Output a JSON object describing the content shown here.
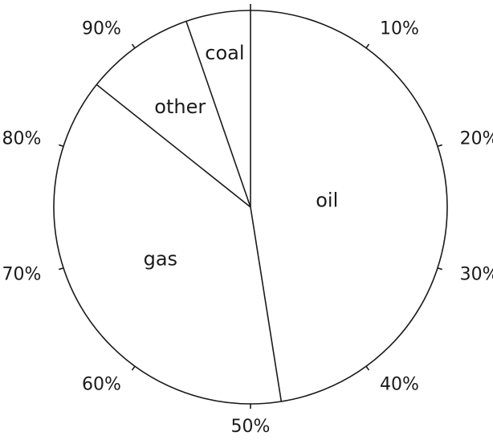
{
  "chart_data": {
    "type": "pie",
    "title": "",
    "start_angle": "top (12 o'clock)",
    "direction": "clockwise",
    "grid": false,
    "legend": "none (slices labelled directly)",
    "slices": [
      {
        "label": "oil",
        "value": 47.5
      },
      {
        "label": "gas",
        "value": 38.2
      },
      {
        "label": "other",
        "value": 9.0
      },
      {
        "label": "coal",
        "value": 5.3
      }
    ],
    "scale_ticks": [
      "10%",
      "20%",
      "30%",
      "40%",
      "50%",
      "60%",
      "70%",
      "80%",
      "90%"
    ]
  },
  "colors": {
    "stroke": "#1a1a1a",
    "fill": "#ffffff",
    "text": "#1a1a1a"
  }
}
